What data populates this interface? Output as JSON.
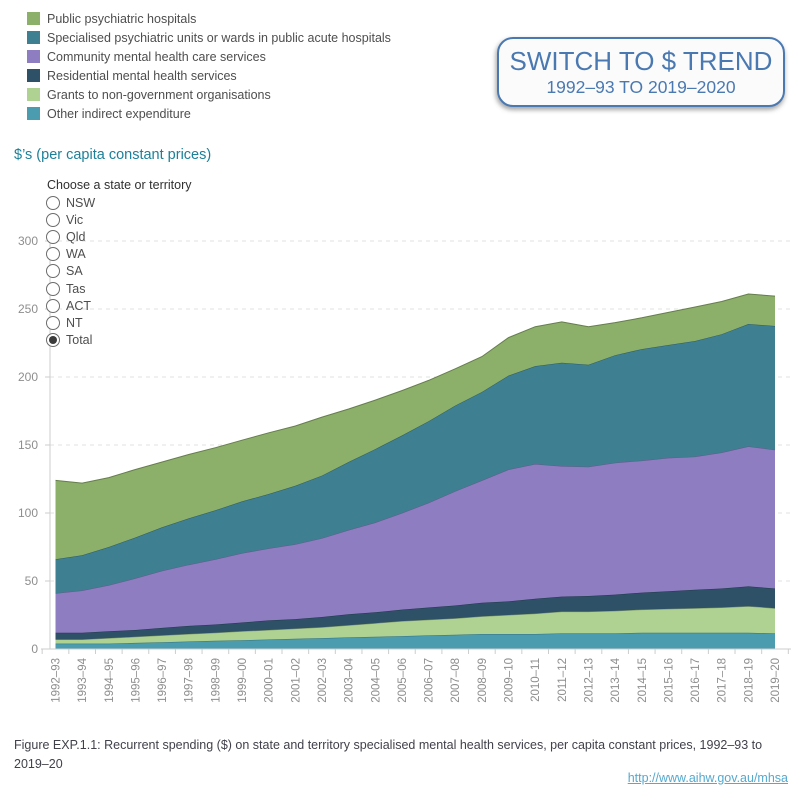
{
  "legend": {
    "items": [
      {
        "label": "Public psychiatric hospitals",
        "color": "#8CAF69"
      },
      {
        "label": "Specialised psychiatric units or wards in public acute hospitals",
        "color": "#3E7F92"
      },
      {
        "label": "Community mental health care services",
        "color": "#8F7DC2"
      },
      {
        "label": "Residential mental health services",
        "color": "#2F5168"
      },
      {
        "label": "Grants to non-government organisations",
        "color": "#AFD293"
      },
      {
        "label": "Other indirect expenditure",
        "color": "#4A9CAE"
      }
    ]
  },
  "switch_button": {
    "line1": "SWITCH TO $ TREND",
    "line2": "1992–93 TO 2019–2020",
    "accent_color": "#4a79b2"
  },
  "axis_title": "$’s (per capita constant prices)",
  "state_selector": {
    "label": "Choose a state or territory",
    "options": [
      {
        "label": "NSW",
        "selected": false
      },
      {
        "label": "Vic",
        "selected": false
      },
      {
        "label": "Qld",
        "selected": false
      },
      {
        "label": "WA",
        "selected": false
      },
      {
        "label": "SA",
        "selected": false
      },
      {
        "label": "Tas",
        "selected": false
      },
      {
        "label": "ACT",
        "selected": false
      },
      {
        "label": "NT",
        "selected": false
      },
      {
        "label": "Total",
        "selected": true
      }
    ]
  },
  "chart_data": {
    "type": "area",
    "stacked": true,
    "title": "Recurrent spending ($) on specialised mental health services, per capita constant prices",
    "ylabel": "$’s (per capita constant prices)",
    "ylim": [
      0,
      300
    ],
    "yticks": [
      0,
      50,
      100,
      150,
      200,
      250,
      300
    ],
    "grid": "horizontal-dashed",
    "legend_position": "top-left",
    "x": [
      "1992–93",
      "1993–94",
      "1994–95",
      "1995–96",
      "1996–97",
      "1997–98",
      "1998–99",
      "1999–00",
      "2000–01",
      "2001–02",
      "2002–03",
      "2003–04",
      "2004–05",
      "2005–06",
      "2006–07",
      "2007–08",
      "2008–09",
      "2009–10",
      "2010–11",
      "2011–12",
      "2012–13",
      "2013–14",
      "2014–15",
      "2015–16",
      "2016–17",
      "2017–18",
      "2018–19",
      "2019–20"
    ],
    "series": [
      {
        "name": "Other indirect expenditure",
        "color": "#4A9CAE",
        "values": [
          4,
          4,
          4,
          4.5,
          5,
          5.5,
          6,
          6.5,
          7,
          7.5,
          8,
          8.5,
          9,
          9.5,
          10,
          10.5,
          11,
          11,
          11,
          11.5,
          11.5,
          11.5,
          12,
          12,
          12,
          12,
          12,
          11.5
        ]
      },
      {
        "name": "Grants to non-government organisations",
        "color": "#AFD293",
        "values": [
          3,
          3,
          4,
          4.5,
          5,
          5.5,
          6,
          6.5,
          7,
          7.5,
          8,
          9,
          10,
          11,
          11.5,
          12,
          13,
          14,
          15,
          16,
          16,
          16.5,
          17,
          17.5,
          18,
          18.5,
          19.5,
          18.5
        ]
      },
      {
        "name": "Residential mental health services",
        "color": "#2F5168",
        "values": [
          5,
          5,
          5,
          5,
          5.5,
          6,
          6,
          6.5,
          7,
          7,
          7.5,
          8,
          8,
          8.5,
          9,
          9.5,
          10,
          10,
          11,
          11,
          11.5,
          12,
          12.5,
          13,
          13.5,
          14,
          14.5,
          14.5
        ]
      },
      {
        "name": "Community mental health care services",
        "color": "#8F7DC2",
        "values": [
          29,
          31,
          34,
          38,
          42,
          45,
          48,
          51,
          53,
          55,
          58,
          62,
          66,
          71,
          77,
          84,
          90,
          97,
          99,
          96,
          95,
          97,
          97,
          98,
          98,
          100,
          103,
          102
        ]
      },
      {
        "name": "Specialised psychiatric units or wards in public acute hospitals",
        "color": "#3E7F92",
        "values": [
          25,
          26,
          28,
          30,
          32,
          34,
          36,
          38,
          40,
          43,
          46,
          50,
          54,
          57,
          60,
          63,
          65,
          69,
          72,
          76,
          75,
          79,
          82,
          83,
          85,
          87,
          90,
          91
        ]
      },
      {
        "name": "Public psychiatric hospitals",
        "color": "#8CAF69",
        "values": [
          58,
          53,
          51,
          50,
          48,
          47,
          46,
          45,
          45,
          44,
          43,
          39,
          36,
          33,
          30,
          27,
          26,
          28,
          29,
          30,
          28,
          24,
          23,
          24,
          25,
          24,
          22,
          22
        ]
      }
    ]
  },
  "caption": "Figure EXP.1.1: Recurrent spending ($) on state and territory specialised mental health services, per capita constant prices, 1992–93 to\n2019–20",
  "link": "http://www.aihw.gov.au/mhsa"
}
